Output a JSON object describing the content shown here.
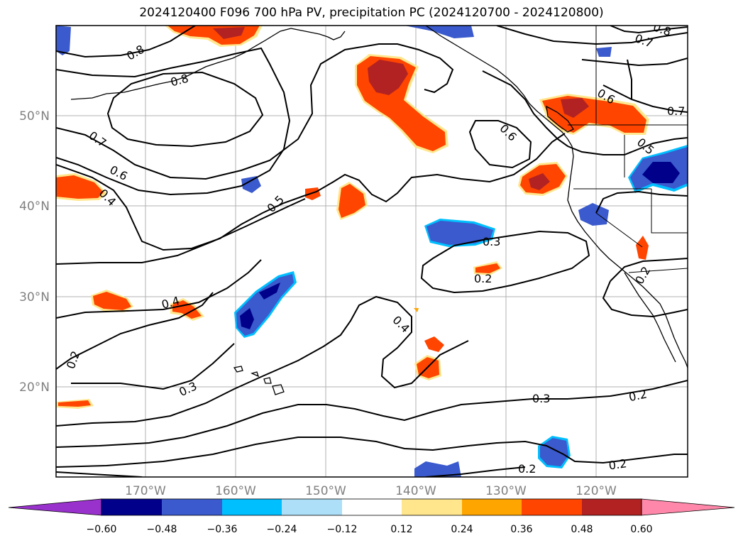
{
  "title": "2024120400 F096 700 hPa PV, precipitation PC (2024120700 - 2024120800)",
  "map": {
    "lat_labels": [
      "50°N",
      "40°N",
      "30°N",
      "20°N"
    ],
    "lon_labels": [
      "170°W",
      "160°W",
      "150°W",
      "140°W",
      "130°W",
      "120°W"
    ],
    "contour_labels": [
      "0.8",
      "0.8",
      "0.7",
      "0.6",
      "0.4",
      "0.5",
      "0.6",
      "0.6",
      "0.7",
      "0.8",
      "0.7",
      "0.5",
      "0.3",
      "0.2",
      "0.4",
      "0.4",
      "0.3",
      "0.2",
      "0.3",
      "0.2",
      "0.2",
      "0.2",
      "0.2"
    ]
  },
  "colorbar": {
    "ticks": [
      "−0.60",
      "−0.48",
      "−0.36",
      "−0.24",
      "−0.12",
      "0.12",
      "0.24",
      "0.36",
      "0.48",
      "0.60"
    ],
    "colors": [
      "#9932CC",
      "#00008B",
      "#3A5ACD",
      "#00BFFF",
      "#ADE0F8",
      "#FFFFFF",
      "#FFE68C",
      "#FFA500",
      "#FF4500",
      "#B22222",
      "#FF88AA"
    ]
  }
}
